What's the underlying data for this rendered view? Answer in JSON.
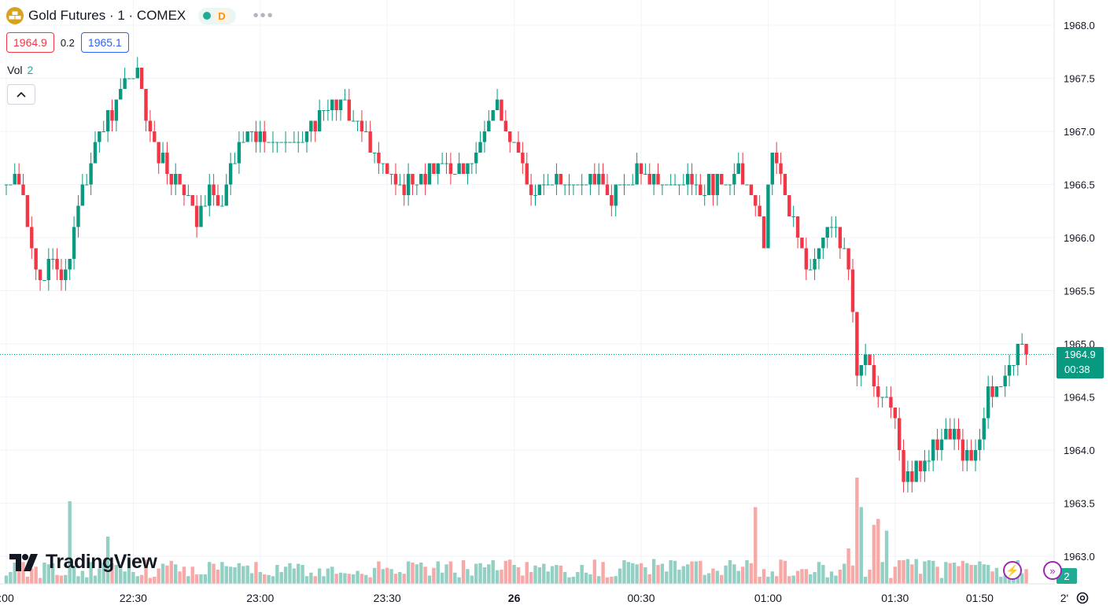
{
  "header": {
    "title": "Gold Futures · 1 · COMEX",
    "market_badge": "D",
    "bid": "1964.9",
    "spread": "0.2",
    "ask": "1965.1",
    "volume_label": "Vol",
    "volume_value": "2"
  },
  "brand": {
    "name": "TradingView"
  },
  "last_price": {
    "price": "1964.9",
    "countdown": "00:38",
    "volume_badge": "2"
  },
  "icons": {
    "symbol": "gold-bars-icon",
    "status": "market-open-dot-icon",
    "collapse": "chevron-up-icon",
    "settings": "gear-icon"
  },
  "colors": {
    "up": "#089981",
    "down": "#f23645",
    "up_vol": "#93cfc3",
    "down_vol": "#f7a9a8",
    "accent": "#2962ff"
  },
  "chart_data": {
    "type": "candlestick",
    "interval": "1 minute",
    "y_ticks": [
      1963.0,
      1963.5,
      1964.0,
      1964.5,
      1965.0,
      1965.5,
      1966.0,
      1966.5,
      1967.0,
      1967.5,
      1968.0
    ],
    "ylim": [
      1962.8,
      1968.2
    ],
    "x_ticks": [
      {
        "label": ":00",
        "min": 0
      },
      {
        "label": "22:30",
        "min": 30
      },
      {
        "label": "23:00",
        "min": 60
      },
      {
        "label": "23:30",
        "min": 90
      },
      {
        "label": "26",
        "min": 120,
        "bold": true
      },
      {
        "label": "00:30",
        "min": 150
      },
      {
        "label": "01:00",
        "min": 180
      },
      {
        "label": "01:30",
        "min": 210
      },
      {
        "label": "01:50",
        "min": 230
      },
      {
        "label": "2'",
        "min": 250
      }
    ],
    "x_start_min": 0.8,
    "last_price": 1964.9,
    "anchors": [
      [
        0,
        1966.5
      ],
      [
        3,
        1966.6
      ],
      [
        5,
        1966.2
      ],
      [
        8,
        1965.6
      ],
      [
        11,
        1965.8
      ],
      [
        14,
        1965.6
      ],
      [
        17,
        1966.3
      ],
      [
        21,
        1966.8
      ],
      [
        25,
        1967.2
      ],
      [
        29,
        1967.5
      ],
      [
        31,
        1967.6
      ],
      [
        34,
        1967.0
      ],
      [
        38,
        1966.6
      ],
      [
        43,
        1966.4
      ],
      [
        45,
        1966.2
      ],
      [
        48,
        1966.4
      ],
      [
        51,
        1966.3
      ],
      [
        54,
        1966.8
      ],
      [
        57,
        1967.0
      ],
      [
        61,
        1966.9
      ],
      [
        66,
        1966.9
      ],
      [
        71,
        1967.0
      ],
      [
        75,
        1967.2
      ],
      [
        80,
        1967.2
      ],
      [
        84,
        1967.0
      ],
      [
        88,
        1966.7
      ],
      [
        93,
        1966.5
      ],
      [
        97,
        1966.5
      ],
      [
        100,
        1966.6
      ],
      [
        104,
        1966.7
      ],
      [
        109,
        1966.6
      ],
      [
        113,
        1967.0
      ],
      [
        116,
        1967.3
      ],
      [
        118,
        1967.0
      ],
      [
        121,
        1966.8
      ],
      [
        125,
        1966.4
      ],
      [
        129,
        1966.6
      ],
      [
        134,
        1966.5
      ],
      [
        138,
        1966.6
      ],
      [
        143,
        1966.4
      ],
      [
        148,
        1966.6
      ],
      [
        153,
        1966.5
      ],
      [
        157,
        1966.5
      ],
      [
        161,
        1966.5
      ],
      [
        165,
        1966.5
      ],
      [
        169,
        1966.5
      ],
      [
        173,
        1966.6
      ],
      [
        176,
        1966.4
      ],
      [
        179,
        1966.0
      ],
      [
        181,
        1966.8
      ],
      [
        183,
        1966.6
      ],
      [
        187,
        1966.0
      ],
      [
        190,
        1965.7
      ],
      [
        193,
        1966.0
      ],
      [
        195,
        1966.2
      ],
      [
        198,
        1965.9
      ],
      [
        200,
        1965.4
      ],
      [
        201,
        1964.7
      ],
      [
        203,
        1964.9
      ],
      [
        206,
        1964.5
      ],
      [
        209,
        1964.4
      ],
      [
        211,
        1964.0
      ],
      [
        212,
        1963.7
      ],
      [
        215,
        1963.8
      ],
      [
        218,
        1963.9
      ],
      [
        221,
        1964.2
      ],
      [
        224,
        1964.1
      ],
      [
        227,
        1963.9
      ],
      [
        230,
        1964.1
      ],
      [
        232,
        1964.5
      ],
      [
        234,
        1964.6
      ],
      [
        237,
        1964.7
      ],
      [
        239,
        1965.0
      ],
      [
        241,
        1964.9
      ]
    ],
    "volume": {
      "max": 20,
      "spikes": [
        [
          15,
          14
        ],
        [
          24,
          8
        ],
        [
          177,
          13
        ],
        [
          199,
          6
        ],
        [
          201,
          18
        ],
        [
          202,
          13
        ],
        [
          205,
          10
        ],
        [
          206,
          11
        ],
        [
          208,
          9
        ]
      ]
    },
    "seed": 20230926
  }
}
